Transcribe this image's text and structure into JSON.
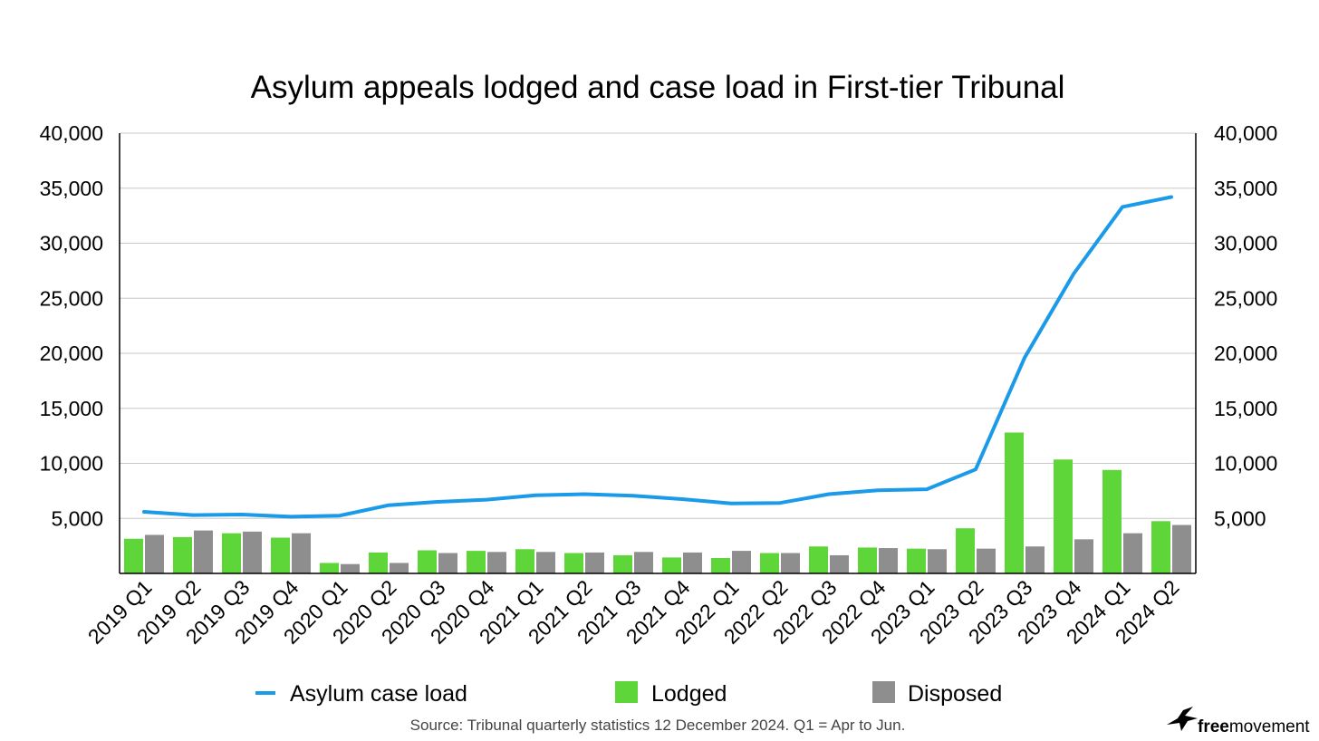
{
  "chart_data": {
    "type": "bar+line",
    "title": "Asylum appeals lodged and case load in First-tier Tribunal",
    "categories": [
      "2019 Q1",
      "2019 Q2",
      "2019 Q3",
      "2019 Q4",
      "2020 Q1",
      "2020 Q2",
      "2020 Q3",
      "2020 Q4",
      "2021 Q1",
      "2021 Q2",
      "2021 Q3",
      "2021 Q4",
      "2022 Q1",
      "2022 Q2",
      "2022 Q3",
      "2022 Q4",
      "2023 Q1",
      "2023 Q2",
      "2023 Q3",
      "2023 Q4",
      "2024 Q1",
      "2024 Q2"
    ],
    "series": [
      {
        "name": "Asylum case load",
        "type": "line",
        "color": "#1a9ae8",
        "values": [
          5600,
          5300,
          5350,
          5150,
          5250,
          6200,
          6500,
          6700,
          7100,
          7200,
          7050,
          6750,
          6350,
          6400,
          7200,
          7550,
          7650,
          9450,
          19600,
          27200,
          33300,
          34200
        ]
      },
      {
        "name": "Lodged",
        "type": "bar",
        "color": "#5ed63a",
        "values": [
          3150,
          3300,
          3650,
          3250,
          950,
          1900,
          2100,
          2050,
          2200,
          1850,
          1650,
          1450,
          1400,
          1850,
          2450,
          2350,
          2250,
          4100,
          12800,
          10350,
          9400,
          4750
        ]
      },
      {
        "name": "Disposed",
        "type": "bar",
        "color": "#8e8e8e",
        "values": [
          3500,
          3900,
          3800,
          3650,
          850,
          950,
          1850,
          1950,
          1950,
          1900,
          1950,
          1900,
          2050,
          1850,
          1650,
          2300,
          2200,
          2250,
          2450,
          3100,
          3650,
          4400
        ]
      }
    ],
    "ylim": [
      0,
      40000
    ],
    "yticks": [
      "5,000",
      "10,000",
      "15,000",
      "20,000",
      "25,000",
      "30,000",
      "35,000",
      "40,000"
    ],
    "ytick_values": [
      5000,
      10000,
      15000,
      20000,
      25000,
      30000,
      35000,
      40000
    ],
    "yticks_left": [
      "40,000",
      "35,000",
      "30,000",
      "25,000",
      "20,000",
      "15,000",
      "10,000",
      "5,000"
    ],
    "grid": true,
    "legend_position": "bottom",
    "source": "Source: Tribunal quarterly statistics 12 December 2024. Q1 = Apr to Jun."
  },
  "brand": {
    "logo_text_bold": "free",
    "logo_text": "movement",
    "icon": "bird-icon"
  }
}
